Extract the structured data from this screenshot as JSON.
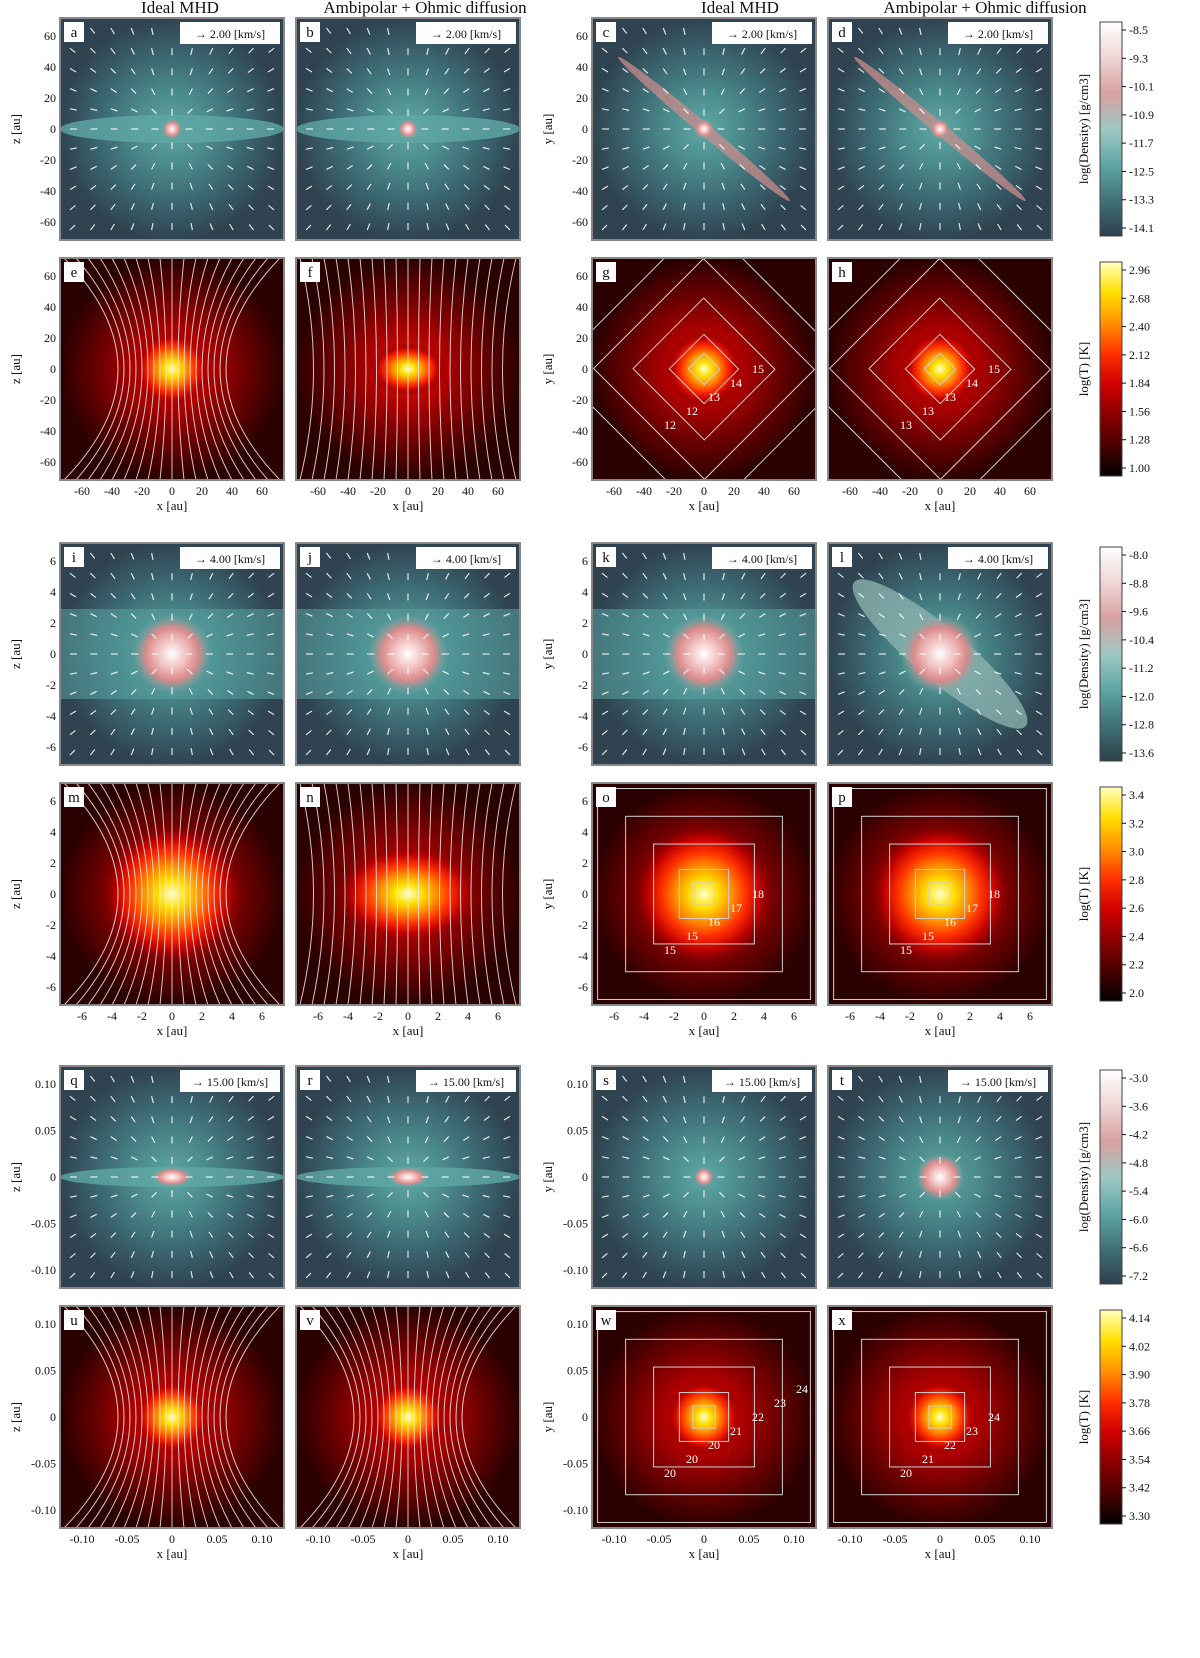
{
  "column_titles": [
    "Ideal MHD",
    "Ambipolar + Ohmic diffusion",
    "Ideal MHD",
    "Ambipolar + Ohmic diffusion"
  ],
  "colors": {
    "density": [
      "#2f3f4b",
      "#3f7276",
      "#5fa6a4",
      "#9fc8c4",
      "#d8a0a0",
      "#f0d6d6",
      "#ffffff"
    ],
    "temperature": [
      "#000000",
      "#4a0000",
      "#8b0000",
      "#d00000",
      "#ff3000",
      "#ff9000",
      "#ffe000",
      "#ffffc0"
    ],
    "frame": "#888888",
    "quiver": "#ffffff",
    "contour": "#d0d0d0"
  },
  "colorbars": [
    {
      "label": "log(Density) [g/cm3]",
      "kind": "density",
      "ticks": [
        "-8.5",
        "-9.3",
        "-10.1",
        "-10.9",
        "-11.7",
        "-12.5",
        "-13.3",
        "-14.1"
      ]
    },
    {
      "label": "log(T) [K]",
      "kind": "temperature",
      "ticks": [
        "2.96",
        "2.68",
        "2.40",
        "2.12",
        "1.84",
        "1.56",
        "1.28",
        "1.00"
      ]
    },
    {
      "label": "log(Density) [g/cm3]",
      "kind": "density",
      "ticks": [
        "-8.0",
        "-8.8",
        "-9.6",
        "-10.4",
        "-11.2",
        "-12.0",
        "-12.8",
        "-13.6"
      ]
    },
    {
      "label": "log(T) [K]",
      "kind": "temperature",
      "ticks": [
        "3.4",
        "3.2",
        "3.0",
        "2.8",
        "2.6",
        "2.4",
        "2.2",
        "2.0"
      ]
    },
    {
      "label": "log(Density) [g/cm3]",
      "kind": "density",
      "ticks": [
        "-3.0",
        "-3.6",
        "-4.2",
        "-4.8",
        "-5.4",
        "-6.0",
        "-6.6",
        "-7.2"
      ]
    },
    {
      "label": "log(T) [K]",
      "kind": "temperature",
      "ticks": [
        "4.14",
        "4.02",
        "3.90",
        "3.78",
        "3.66",
        "3.54",
        "3.42",
        "3.30"
      ]
    }
  ],
  "chart_data": [
    {
      "type": "heatmap",
      "panel": "a",
      "field": "density",
      "plane": "xz",
      "ylabel": "z [au]",
      "xlabel": "",
      "ylim": [
        -75,
        75
      ],
      "xlim": [
        -75,
        75
      ],
      "yticks": [
        "60",
        "40",
        "20",
        "0",
        "-20",
        "-40",
        "-60"
      ],
      "xticks": [],
      "vector_key": "2.00 [km/s]",
      "structure": "disk-outflow"
    },
    {
      "type": "heatmap",
      "panel": "b",
      "field": "density",
      "plane": "xz",
      "ylabel": "",
      "xlabel": "",
      "ylim": [
        -75,
        75
      ],
      "xlim": [
        -75,
        75
      ],
      "yticks": [],
      "xticks": [],
      "vector_key": "2.00 [km/s]",
      "structure": "disk"
    },
    {
      "type": "heatmap",
      "panel": "c",
      "field": "density",
      "plane": "xy",
      "ylabel": "y [au]",
      "xlabel": "",
      "ylim": [
        -75,
        75
      ],
      "xlim": [
        -75,
        75
      ],
      "yticks": [
        "60",
        "40",
        "20",
        "0",
        "-20",
        "-40",
        "-60"
      ],
      "xticks": [],
      "vector_key": "2.00 [km/s]",
      "structure": "bar"
    },
    {
      "type": "heatmap",
      "panel": "d",
      "field": "density",
      "plane": "xy",
      "ylabel": "",
      "xlabel": "",
      "ylim": [
        -75,
        75
      ],
      "xlim": [
        -75,
        75
      ],
      "yticks": [],
      "xticks": [],
      "vector_key": "2.00 [km/s]",
      "structure": "bar"
    },
    {
      "type": "heatmap",
      "panel": "e",
      "field": "temperature",
      "plane": "xz",
      "ylabel": "z [au]",
      "xlabel": "x [au]",
      "ylim": [
        -75,
        75
      ],
      "xlim": [
        -75,
        75
      ],
      "yticks": [
        "60",
        "40",
        "20",
        "0",
        "-20",
        "-40",
        "-60"
      ],
      "xticks": [
        "-60",
        "-40",
        "-20",
        "0",
        "20",
        "40",
        "60"
      ],
      "structure": "fieldlines-pinched"
    },
    {
      "type": "heatmap",
      "panel": "f",
      "field": "temperature",
      "plane": "xz",
      "ylabel": "",
      "xlabel": "x [au]",
      "ylim": [
        -75,
        75
      ],
      "xlim": [
        -75,
        75
      ],
      "yticks": [],
      "xticks": [
        "-60",
        "-40",
        "-20",
        "0",
        "20",
        "40",
        "60"
      ],
      "structure": "fieldlines-straight"
    },
    {
      "type": "heatmap",
      "panel": "g",
      "field": "temperature",
      "plane": "xy",
      "ylabel": "y [au]",
      "xlabel": "x [au]",
      "ylim": [
        -75,
        75
      ],
      "xlim": [
        -75,
        75
      ],
      "yticks": [
        "60",
        "40",
        "20",
        "0",
        "-20",
        "-40",
        "-60"
      ],
      "xticks": [
        "-60",
        "-40",
        "-20",
        "0",
        "20",
        "40",
        "60"
      ],
      "contour_labels": [
        "12",
        "12",
        "13",
        "14",
        "15"
      ],
      "structure": "contours"
    },
    {
      "type": "heatmap",
      "panel": "h",
      "field": "temperature",
      "plane": "xy",
      "ylabel": "",
      "xlabel": "x [au]",
      "ylim": [
        -75,
        75
      ],
      "xlim": [
        -75,
        75
      ],
      "yticks": [],
      "xticks": [
        "-60",
        "-40",
        "-20",
        "0",
        "20",
        "40",
        "60"
      ],
      "contour_labels": [
        "13",
        "13",
        "13",
        "14",
        "15"
      ],
      "structure": "contours"
    },
    {
      "type": "heatmap",
      "panel": "i",
      "field": "density",
      "plane": "xz",
      "ylabel": "z [au]",
      "xlabel": "",
      "ylim": [
        -7.5,
        7.5
      ],
      "xlim": [
        -7.5,
        7.5
      ],
      "yticks": [
        "6",
        "4",
        "2",
        "0",
        "-2",
        "-4",
        "-6"
      ],
      "xticks": [],
      "vector_key": "4.00 [km/s]",
      "structure": "core"
    },
    {
      "type": "heatmap",
      "panel": "j",
      "field": "density",
      "plane": "xz",
      "ylabel": "",
      "xlabel": "",
      "ylim": [
        -7.5,
        7.5
      ],
      "xlim": [
        -7.5,
        7.5
      ],
      "yticks": [],
      "xticks": [],
      "vector_key": "4.00 [km/s]",
      "structure": "core-disk"
    },
    {
      "type": "heatmap",
      "panel": "k",
      "field": "density",
      "plane": "xy",
      "ylabel": "y [au]",
      "xlabel": "",
      "ylim": [
        -7.5,
        7.5
      ],
      "xlim": [
        -7.5,
        7.5
      ],
      "yticks": [
        "6",
        "4",
        "2",
        "0",
        "-2",
        "-4",
        "-6"
      ],
      "xticks": [],
      "vector_key": "4.00 [km/s]",
      "structure": "core"
    },
    {
      "type": "heatmap",
      "panel": "l",
      "field": "density",
      "plane": "xy",
      "ylabel": "",
      "xlabel": "",
      "ylim": [
        -7.5,
        7.5
      ],
      "xlim": [
        -7.5,
        7.5
      ],
      "yticks": [],
      "xticks": [],
      "vector_key": "4.00 [km/s]",
      "structure": "core-bar"
    },
    {
      "type": "heatmap",
      "panel": "m",
      "field": "temperature",
      "plane": "xz",
      "ylabel": "z [au]",
      "xlabel": "x [au]",
      "ylim": [
        -7.5,
        7.5
      ],
      "xlim": [
        -7.5,
        7.5
      ],
      "yticks": [
        "6",
        "4",
        "2",
        "0",
        "-2",
        "-4",
        "-6"
      ],
      "xticks": [
        "-6",
        "-4",
        "-2",
        "0",
        "2",
        "4",
        "6"
      ],
      "structure": "fieldlines-pinched"
    },
    {
      "type": "heatmap",
      "panel": "n",
      "field": "temperature",
      "plane": "xz",
      "ylabel": "",
      "xlabel": "x [au]",
      "ylim": [
        -7.5,
        7.5
      ],
      "xlim": [
        -7.5,
        7.5
      ],
      "yticks": [],
      "xticks": [
        "-6",
        "-4",
        "-2",
        "0",
        "2",
        "4",
        "6"
      ],
      "structure": "fieldlines-straight"
    },
    {
      "type": "heatmap",
      "panel": "o",
      "field": "temperature",
      "plane": "xy",
      "ylabel": "y [au]",
      "xlabel": "x [au]",
      "ylim": [
        -7.5,
        7.5
      ],
      "xlim": [
        -7.5,
        7.5
      ],
      "yticks": [
        "6",
        "4",
        "2",
        "0",
        "-2",
        "-4",
        "-6"
      ],
      "xticks": [
        "-6",
        "-4",
        "-2",
        "0",
        "2",
        "4",
        "6"
      ],
      "contour_labels": [
        "15",
        "15",
        "16",
        "17",
        "18"
      ],
      "structure": "contours"
    },
    {
      "type": "heatmap",
      "panel": "p",
      "field": "temperature",
      "plane": "xy",
      "ylabel": "",
      "xlabel": "x [au]",
      "ylim": [
        -7.5,
        7.5
      ],
      "xlim": [
        -7.5,
        7.5
      ],
      "yticks": [],
      "xticks": [
        "-6",
        "-4",
        "-2",
        "0",
        "2",
        "4",
        "6"
      ],
      "contour_labels": [
        "15",
        "15",
        "16",
        "17",
        "18"
      ],
      "structure": "contours"
    },
    {
      "type": "heatmap",
      "panel": "q",
      "field": "density",
      "plane": "xz",
      "ylabel": "z [au]",
      "xlabel": "",
      "ylim": [
        -0.15,
        0.15
      ],
      "xlim": [
        -0.15,
        0.15
      ],
      "yticks": [
        "0.10",
        "0.05",
        "0",
        "-0.05",
        "-0.10"
      ],
      "xticks": [],
      "vector_key": "15.00 [km/s]",
      "structure": "small-disk"
    },
    {
      "type": "heatmap",
      "panel": "r",
      "field": "density",
      "plane": "xz",
      "ylabel": "",
      "xlabel": "",
      "ylim": [
        -0.15,
        0.15
      ],
      "xlim": [
        -0.15,
        0.15
      ],
      "yticks": [],
      "xticks": [],
      "vector_key": "15.00 [km/s]",
      "structure": "small-disk"
    },
    {
      "type": "heatmap",
      "panel": "s",
      "field": "density",
      "plane": "xy",
      "ylabel": "y [au]",
      "xlabel": "",
      "ylim": [
        -0.15,
        0.15
      ],
      "xlim": [
        -0.15,
        0.15
      ],
      "yticks": [
        "0.10",
        "0.05",
        "0",
        "-0.05",
        "-0.10"
      ],
      "xticks": [],
      "vector_key": "15.00 [km/s]",
      "structure": "point"
    },
    {
      "type": "heatmap",
      "panel": "t",
      "field": "density",
      "plane": "xy",
      "ylabel": "",
      "xlabel": "",
      "ylim": [
        -0.15,
        0.15
      ],
      "xlim": [
        -0.15,
        0.15
      ],
      "yticks": [],
      "xticks": [],
      "vector_key": "15.00 [km/s]",
      "structure": "blob"
    },
    {
      "type": "heatmap",
      "panel": "u",
      "field": "temperature",
      "plane": "xz",
      "ylabel": "z [au]",
      "xlabel": "x [au]",
      "ylim": [
        -0.15,
        0.15
      ],
      "xlim": [
        -0.15,
        0.15
      ],
      "yticks": [
        "0.10",
        "0.05",
        "0",
        "-0.05",
        "-0.10"
      ],
      "xticks": [
        "-0.10",
        "-0.05",
        "0",
        "0.05",
        "0.10"
      ],
      "structure": "fieldlines-pinched"
    },
    {
      "type": "heatmap",
      "panel": "v",
      "field": "temperature",
      "plane": "xz",
      "ylabel": "",
      "xlabel": "x [au]",
      "ylim": [
        -0.15,
        0.15
      ],
      "xlim": [
        -0.15,
        0.15
      ],
      "yticks": [],
      "xticks": [
        "-0.10",
        "-0.05",
        "0",
        "0.05",
        "0.10"
      ],
      "structure": "fieldlines-pinched"
    },
    {
      "type": "heatmap",
      "panel": "w",
      "field": "temperature",
      "plane": "xy",
      "ylabel": "y [au]",
      "xlabel": "x [au]",
      "ylim": [
        -0.15,
        0.15
      ],
      "xlim": [
        -0.15,
        0.15
      ],
      "yticks": [
        "0.10",
        "0.05",
        "0",
        "-0.05",
        "-0.10"
      ],
      "xticks": [
        "-0.10",
        "-0.05",
        "0",
        "0.05",
        "0.10"
      ],
      "contour_labels": [
        "20",
        "20",
        "20",
        "21",
        "22",
        "23",
        "24"
      ],
      "structure": "contours"
    },
    {
      "type": "heatmap",
      "panel": "x",
      "field": "temperature",
      "plane": "xy",
      "ylabel": "",
      "xlabel": "x [au]",
      "ylim": [
        -0.15,
        0.15
      ],
      "xlim": [
        -0.15,
        0.15
      ],
      "yticks": [],
      "xticks": [
        "-0.10",
        "-0.05",
        "0",
        "0.05",
        "0.10"
      ],
      "contour_labels": [
        "20",
        "21",
        "22",
        "23",
        "24"
      ],
      "structure": "contours"
    }
  ]
}
